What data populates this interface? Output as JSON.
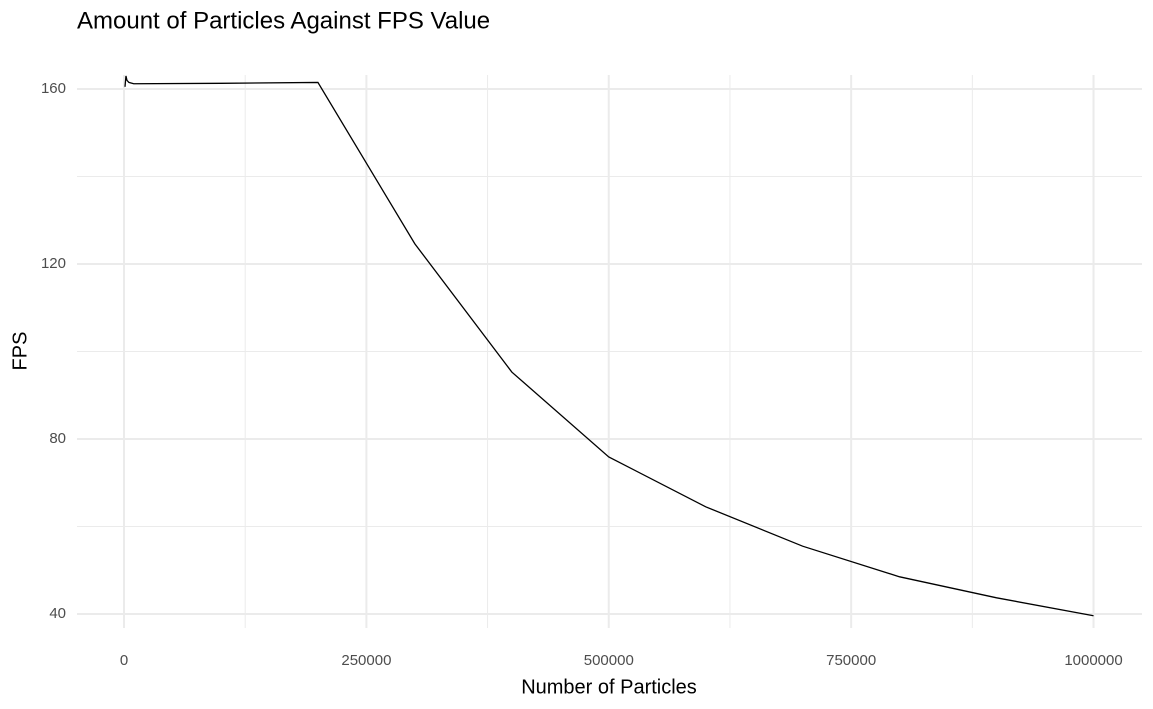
{
  "chart_data": {
    "type": "line",
    "title": "Amount of Particles Against FPS Value",
    "xlabel": "Number of Particles",
    "ylabel": "FPS",
    "x": [
      1000,
      2000,
      3000,
      5000,
      10000,
      100000,
      200000,
      300000,
      400000,
      500000,
      600000,
      700000,
      800000,
      900000,
      1000000
    ],
    "series": [
      {
        "color": "#000000",
        "values": [
          160.5,
          163,
          162,
          161.5,
          161.2,
          161.3,
          161.5,
          124.6,
          95.3,
          75.9,
          64.5,
          55.5,
          48.5,
          43.7,
          39.6
        ]
      }
    ],
    "xlim": [
      -48500,
      1050000
    ],
    "ylim": [
      36.8,
      163.2
    ],
    "xticks": [
      0,
      250000,
      500000,
      750000,
      1000000
    ],
    "yticks": [
      40,
      80,
      120,
      160
    ],
    "xminor": [
      125000,
      375000,
      625000,
      875000
    ],
    "yminor": [
      60,
      100,
      140
    ],
    "grid": true
  }
}
